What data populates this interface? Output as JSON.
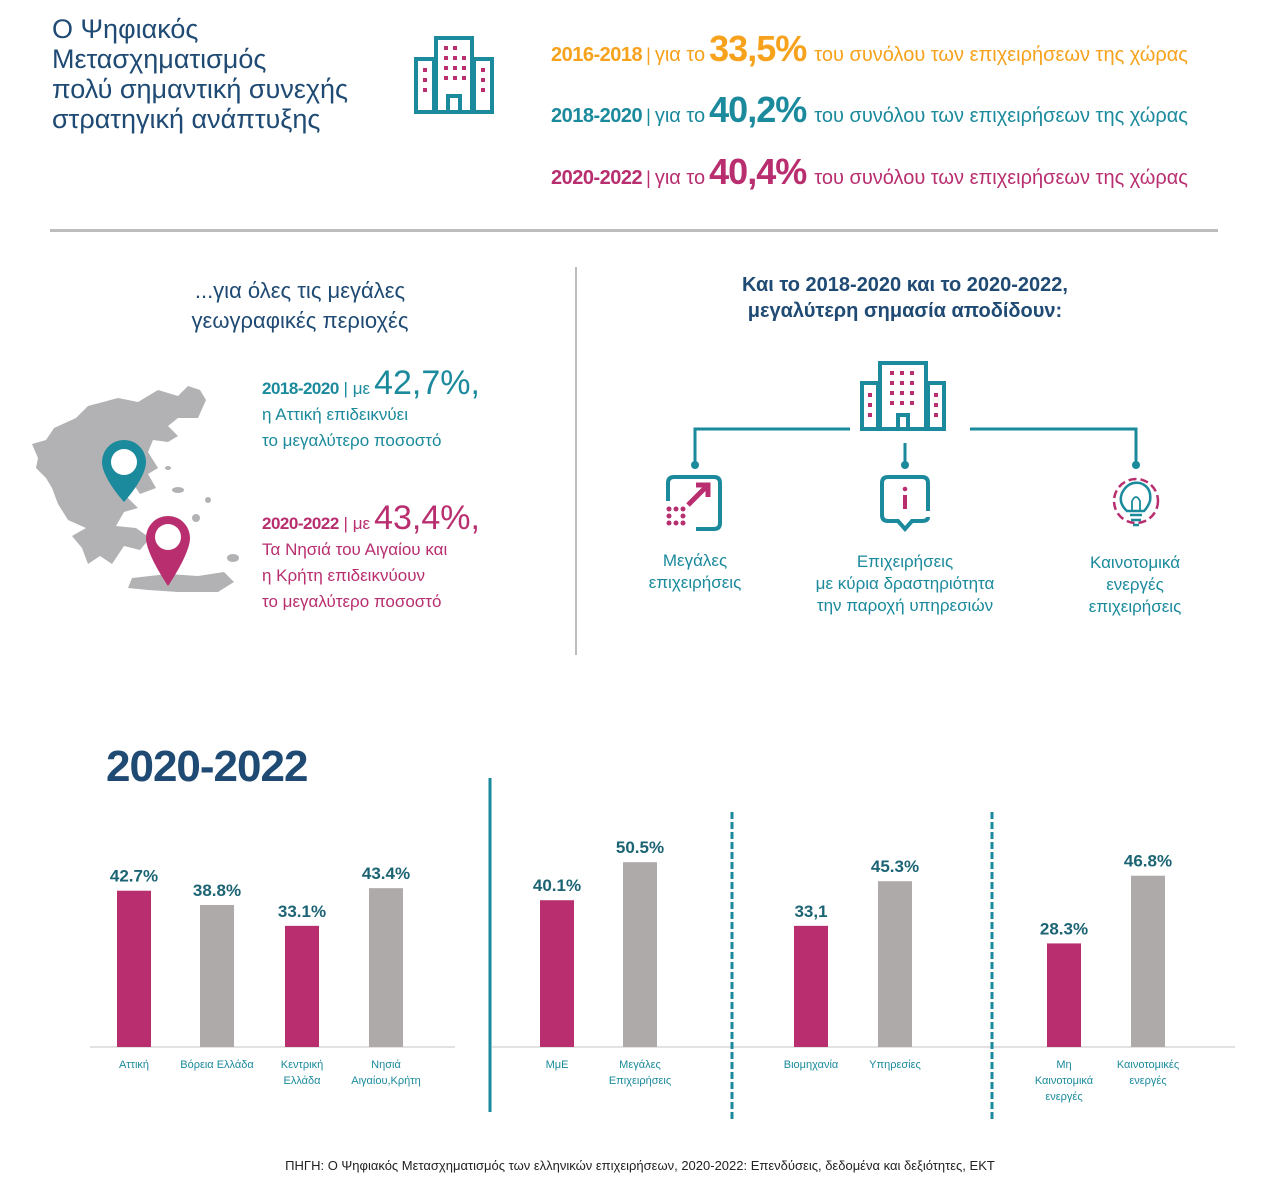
{
  "header": {
    "title_lines": [
      "Ο Ψηφιακός",
      "Μετασχηματισμός",
      "πολύ σημαντική συνεχής",
      "στρατηγική ανάπτυξης"
    ],
    "icon": "building-icon"
  },
  "stats": [
    {
      "period": "2016-2018",
      "sep": "|",
      "prefix": "για το",
      "value": "33,5%",
      "suffix": "του συνόλου των επιχειρήσεων της χώρας",
      "color": "#f6a21c"
    },
    {
      "period": "2018-2020",
      "sep": "|",
      "prefix": "για το",
      "value": "40,2%",
      "suffix": "του συνόλου των επιχειρήσεων της χώρας",
      "color": "#1a8a9c"
    },
    {
      "period": "2020-2022",
      "sep": "|",
      "prefix": "για το",
      "value": "40,4%",
      "suffix": "του συνόλου των επιχειρήσεων της χώρας",
      "color": "#b82e6f"
    }
  ],
  "regions": {
    "title_lines": [
      "...για όλες τις μεγάλες",
      "γεωγραφικές περιοχές"
    ],
    "map_icon": "greece-map-icon",
    "items": [
      {
        "period": "2018-2020",
        "sep": "|",
        "prefix": "με",
        "value": "42,7%,",
        "lines": [
          "η Αττική επιδεικνύει",
          "το μεγαλύτερο ποσοστό"
        ],
        "color": "#1a8a9c",
        "pin": "location-pin-icon"
      },
      {
        "period": "2020-2022",
        "sep": "|",
        "prefix": "με",
        "value": "43,4%,",
        "lines": [
          "Τα Νησιά του Αιγαίου και",
          "η Κρήτη επιδεικνύουν",
          "το μεγαλύτερο ποσοστό"
        ],
        "color": "#b82e6f",
        "pin": "location-pin-icon"
      }
    ]
  },
  "focus": {
    "title_lines": [
      "Και το 2018-2020 και το 2020-2022,",
      "μεγαλύτερη σημασία αποδίδουν:"
    ],
    "items": [
      {
        "icon": "scale-up-arrow-icon",
        "lines": [
          "Μεγάλες",
          "επιχειρήσεις"
        ]
      },
      {
        "icon": "info-bubble-icon",
        "lines": [
          "Επιχειρήσεις",
          "με κύρια δραστηριότητα",
          "την παροχή υπηρεσιών"
        ]
      },
      {
        "icon": "lightbulb-gear-icon",
        "lines": [
          "Καινοτομικά",
          "ενεργές",
          "επιχειρήσεις"
        ]
      }
    ]
  },
  "colors": {
    "navy": "#1f4a73",
    "teal": "#1a8a9c",
    "magenta": "#b82e6f",
    "orange": "#f6a21c",
    "grey_bar": "#aeaaa9",
    "label": "#1c6474"
  },
  "chart_data": {
    "type": "bar",
    "title": "2020-2022",
    "xlabel": "",
    "ylabel": "",
    "ylim": [
      0,
      55
    ],
    "grid": false,
    "groups": [
      {
        "name": "regions",
        "categories": [
          [
            "Αττική"
          ],
          [
            "Βόρεια Ελλάδα"
          ],
          [
            "Κεντρική",
            "Ελλάδα"
          ],
          [
            "Νησιά",
            "Αιγαίου,Κρήτη"
          ]
        ],
        "values": [
          42.7,
          38.8,
          33.1,
          43.4
        ],
        "labels": [
          "42.7%",
          "38.8%",
          "33.1%",
          "43.4%"
        ],
        "colors": [
          "#b82e6f",
          "#aeaaa9",
          "#b82e6f",
          "#aeaaa9"
        ]
      },
      {
        "name": "size",
        "categories": [
          [
            "ΜμΕ"
          ],
          [
            "Μεγάλες",
            "Επιχειρήσεις"
          ]
        ],
        "values": [
          40.1,
          50.5
        ],
        "labels": [
          "40.1%",
          "50.5%"
        ],
        "colors": [
          "#b82e6f",
          "#aeaaa9"
        ]
      },
      {
        "name": "sector",
        "categories": [
          [
            "Βιομηχανία"
          ],
          [
            "Υπηρεσίες"
          ]
        ],
        "values": [
          33.1,
          45.3
        ],
        "labels": [
          "33,1",
          "45.3%"
        ],
        "colors": [
          "#b82e6f",
          "#aeaaa9"
        ]
      },
      {
        "name": "innovation",
        "categories": [
          [
            "Μη",
            "Καινοτομικά",
            "ενεργές"
          ],
          [
            "Καινοτομικές",
            "ενεργές"
          ]
        ],
        "values": [
          28.3,
          46.8
        ],
        "labels": [
          "28.3%",
          "46.8%"
        ],
        "colors": [
          "#b82e6f",
          "#aeaaa9"
        ]
      }
    ]
  },
  "footer": {
    "source": "ΠΗΓΗ: Ο Ψηφιακός Μετασχηματισμός των ελληνικών επιχειρήσεων, 2020-2022: Επενδύσεις, δεδομένα και δεξιότητες, ΕΚΤ"
  }
}
